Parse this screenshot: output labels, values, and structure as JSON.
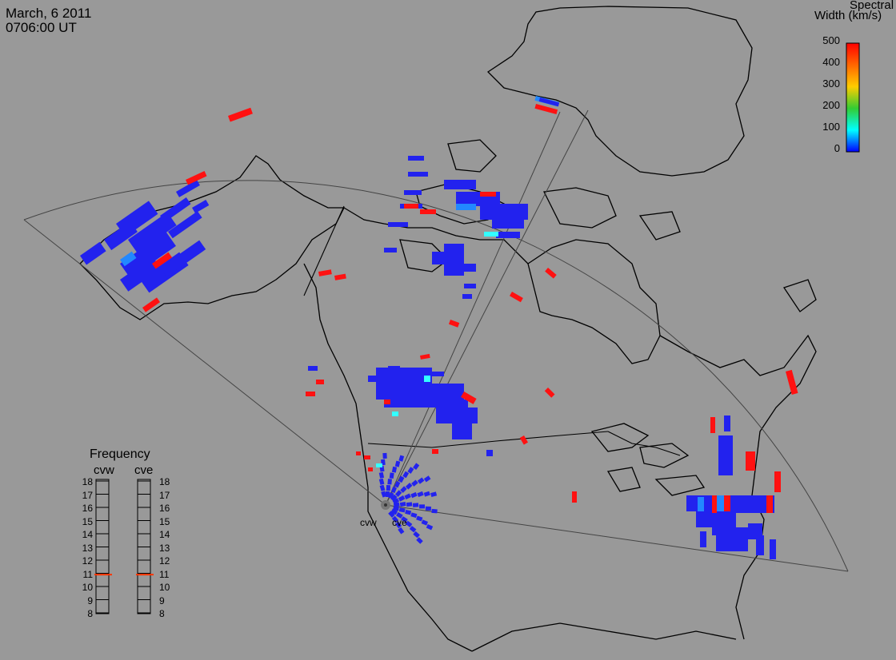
{
  "header": {
    "date": "March, 6 2011",
    "time": "0706:00 UT"
  },
  "legend": {
    "title_line1": "Spectral",
    "title_line2": "Width (km/s)",
    "ticks": [
      "500",
      "400",
      "300",
      "200",
      "100",
      "0"
    ],
    "colors": [
      "#ff0000",
      "#ff8800",
      "#ffff00",
      "#00dd00",
      "#00ffff",
      "#0000ff"
    ]
  },
  "frequency": {
    "title": "Frequency",
    "radar_left": "cvw",
    "radar_right": "cve",
    "scale": [
      "18",
      "17",
      "16",
      "15",
      "14",
      "13",
      "12",
      "11",
      "10",
      "9",
      "8"
    ],
    "current_mhz_cvw": 10.9,
    "current_mhz_cve": 10.9
  },
  "sites": {
    "west": "cvw",
    "east": "cve"
  },
  "colors": {
    "background": "#999999",
    "low_width": "#2222ee",
    "mid_width": "#2288ff",
    "cyan_width": "#33ffff",
    "high_width": "#ff1111",
    "indicator": "#ff3300"
  }
}
